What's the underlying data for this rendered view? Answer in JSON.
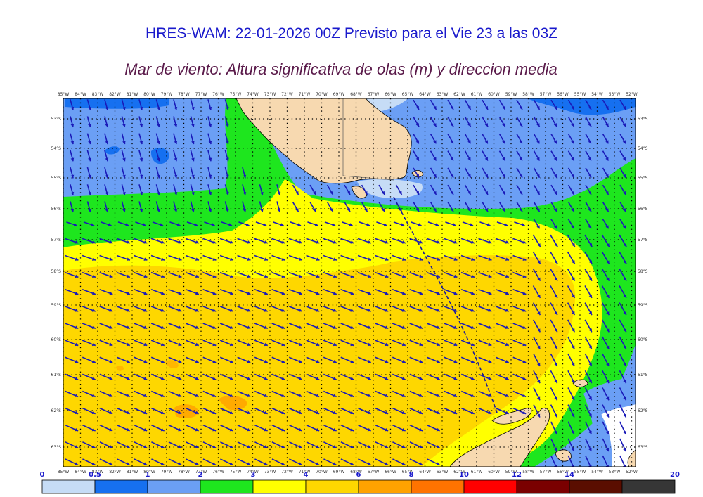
{
  "header": {
    "title": "HRES-WAM: 22-01-2026 00Z Previsto para el Vie 23 a las 03Z",
    "subtitle": "Mar de viento: Altura significativa de olas (m) y direccion media"
  },
  "map": {
    "lon_labels": [
      "85°W",
      "84°W",
      "83°W",
      "82°W",
      "81°W",
      "80°W",
      "79°W",
      "78°W",
      "77°W",
      "76°W",
      "75°W",
      "74°W",
      "73°W",
      "72°W",
      "71°W",
      "70°W",
      "69°W",
      "68°W",
      "67°W",
      "66°W",
      "65°W",
      "64°W",
      "63°W",
      "62°W",
      "61°W",
      "60°W",
      "59°W",
      "58°W",
      "57°W",
      "56°W",
      "55°W",
      "54°W",
      "53°W",
      "52°W"
    ],
    "lat_labels": [
      "53°S",
      "54°S",
      "55°S",
      "56°S",
      "57°S",
      "58°S",
      "59°S",
      "60°S",
      "61°S",
      "62°S",
      "63°S"
    ],
    "colors": {
      "land": "#f7d9b0",
      "arrow": "#1a1ab8",
      "track": "#1a1a9a"
    }
  },
  "colorbar": {
    "labels": [
      "0",
      "0.5",
      "1",
      "2",
      "3",
      "4",
      "6",
      "8",
      "10",
      "12",
      "14",
      "20"
    ],
    "colors": [
      "#c6dcf6",
      "#1670f0",
      "#6b9ff5",
      "#1ee61e",
      "#ffff00",
      "#fed700",
      "#ffa200",
      "#ff7300",
      "#ff0000",
      "#7a0000",
      "#5a0e00",
      "#363636"
    ]
  }
}
